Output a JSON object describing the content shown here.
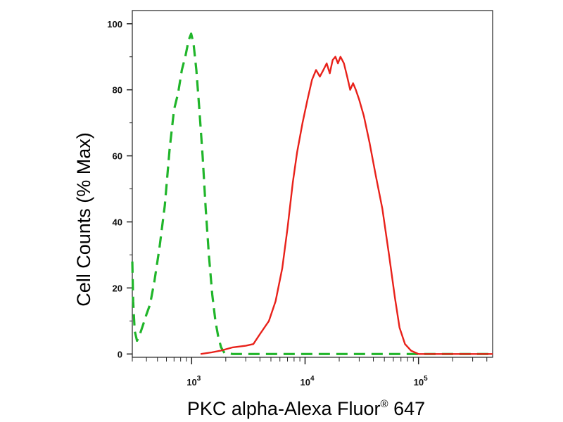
{
  "chart_data": {
    "type": "line",
    "title": "",
    "xlabel": "PKC alpha-Alexa Fluor",
    "xlabel_superscript": "®",
    "xlabel_suffix": " 647",
    "ylabel": "Cell Counts (% Max)",
    "x_scale": "log",
    "xlim": [
      300,
      450000
    ],
    "ylim": [
      -1,
      104
    ],
    "grid": false,
    "legend": "none",
    "y_ticks": [
      0,
      20,
      40,
      60,
      80,
      100
    ],
    "x_ticks": [
      {
        "value": 1000,
        "base": "10",
        "exp": "3"
      },
      {
        "value": 10000,
        "base": "10",
        "exp": "4"
      },
      {
        "value": 100000,
        "base": "10",
        "exp": "5"
      }
    ],
    "series": [
      {
        "color": "#20b52a",
        "dash": true,
        "points": [
          [
            300,
            28
          ],
          [
            305,
            16
          ],
          [
            315,
            7
          ],
          [
            330,
            4
          ],
          [
            350,
            6
          ],
          [
            375,
            9
          ],
          [
            400,
            12
          ],
          [
            430,
            15
          ],
          [
            470,
            22
          ],
          [
            520,
            32
          ],
          [
            580,
            45
          ],
          [
            640,
            62
          ],
          [
            700,
            74
          ],
          [
            760,
            79
          ],
          [
            820,
            86
          ],
          [
            880,
            90
          ],
          [
            940,
            95
          ],
          [
            990,
            97
          ],
          [
            1040,
            94
          ],
          [
            1100,
            86
          ],
          [
            1170,
            74
          ],
          [
            1250,
            60
          ],
          [
            1330,
            44
          ],
          [
            1420,
            30
          ],
          [
            1520,
            18
          ],
          [
            1620,
            10
          ],
          [
            1720,
            5
          ],
          [
            1820,
            2
          ],
          [
            1950,
            0.3
          ],
          [
            2300,
            0
          ],
          [
            450000,
            0
          ]
        ]
      },
      {
        "color": "#e8211a",
        "dash": false,
        "points": [
          [
            1200,
            0
          ],
          [
            1500,
            0.5
          ],
          [
            1800,
            1
          ],
          [
            2300,
            2
          ],
          [
            3000,
            2.5
          ],
          [
            3500,
            3
          ],
          [
            4000,
            6
          ],
          [
            4800,
            10
          ],
          [
            5500,
            16
          ],
          [
            6300,
            26
          ],
          [
            7000,
            38
          ],
          [
            7800,
            52
          ],
          [
            8500,
            61
          ],
          [
            9500,
            70
          ],
          [
            10500,
            77
          ],
          [
            11500,
            83
          ],
          [
            12500,
            86
          ],
          [
            13500,
            84
          ],
          [
            14500,
            86
          ],
          [
            15500,
            88
          ],
          [
            16500,
            85
          ],
          [
            17500,
            89
          ],
          [
            18500,
            90
          ],
          [
            19500,
            88
          ],
          [
            20500,
            90
          ],
          [
            22000,
            88
          ],
          [
            23500,
            84
          ],
          [
            25000,
            80
          ],
          [
            26500,
            82
          ],
          [
            28000,
            80
          ],
          [
            30000,
            77
          ],
          [
            33000,
            72
          ],
          [
            37000,
            64
          ],
          [
            42000,
            54
          ],
          [
            48000,
            44
          ],
          [
            55000,
            30
          ],
          [
            62000,
            17
          ],
          [
            68000,
            8
          ],
          [
            76000,
            3
          ],
          [
            86000,
            1
          ],
          [
            100000,
            0
          ],
          [
            450000,
            0
          ]
        ]
      }
    ]
  }
}
